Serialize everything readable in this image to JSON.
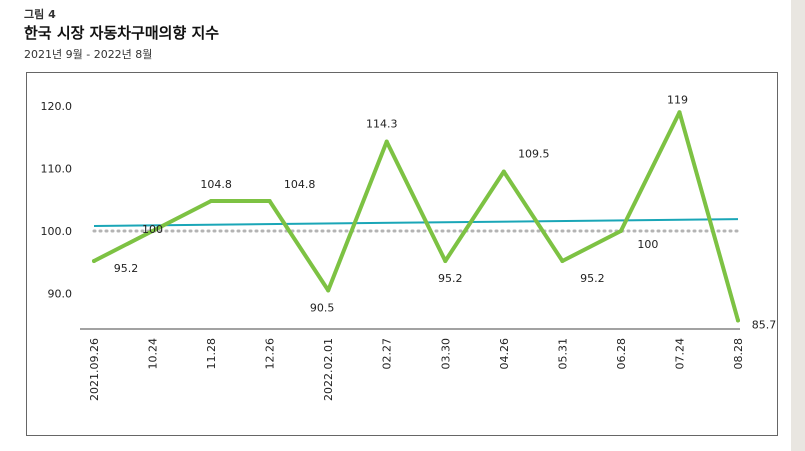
{
  "figure": {
    "label": "그림 4",
    "title": "한국 시장 자동차구매의향 지수",
    "subtitle": "2021년 9월 - 2022년 8월"
  },
  "colors": {
    "series": "#7dc243",
    "trend": "#1aa6b7",
    "baseline": "#b4b4b4",
    "axis": "#444444"
  },
  "chart_data": {
    "type": "line",
    "title": "한국 시장 자동차구매의향 지수",
    "xlabel": "",
    "ylabel": "",
    "categories": [
      "2021.09.26",
      "10.24",
      "11.28",
      "12.26",
      "2022.02.01",
      "02.27",
      "03.30",
      "04.26",
      "05.31",
      "06.28",
      "07.24",
      "08.28"
    ],
    "series": [
      {
        "values": [
          95.2,
          100,
          104.8,
          104.8,
          90.5,
          114.3,
          95.2,
          109.5,
          95.2,
          100,
          119,
          85.7
        ]
      }
    ],
    "data_labels": [
      "95.2",
      "100",
      "104.8",
      "104.8",
      "90.5",
      "114.3",
      "95.2",
      "109.5",
      "95.2",
      "100",
      "119",
      "85.7"
    ],
    "trendline": {
      "start": 100.8,
      "end": 101.9
    },
    "reference_line": 100,
    "yticks": [
      "90.0",
      "100.0",
      "110.0",
      "120.0"
    ],
    "ytick_values": [
      90,
      100,
      110,
      120
    ],
    "ylim": [
      85,
      122
    ],
    "grid": false,
    "legend": "none"
  }
}
